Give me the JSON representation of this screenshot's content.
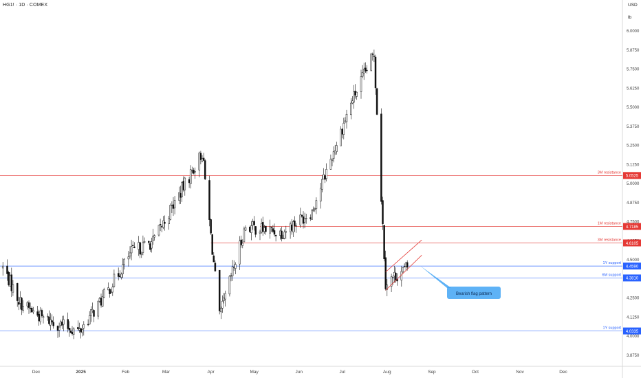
{
  "header": {
    "symbol_line": "HG1! · 1D · COMEX",
    "currency": "USD",
    "unit": "lb"
  },
  "colors": {
    "up_candle": "#111111",
    "down_candle": "#111111",
    "resistance": "#e53935",
    "support": "#2962ff",
    "callout": "#42a5f5",
    "axis_text": "#444444"
  },
  "chart_data": {
    "type": "candlestick",
    "title": "HG1! · 1D · COMEX",
    "currency": "USD",
    "unit": "lb",
    "ylim": [
      3.8,
      6.1
    ],
    "y_ticks": [
      "6.0000",
      "5.8750",
      "5.7500",
      "5.6250",
      "5.5000",
      "5.3750",
      "5.2500",
      "5.1250",
      "5.0000",
      "4.8750",
      "4.7500",
      "4.6250",
      "4.5000",
      "4.3750",
      "4.2500",
      "4.1250",
      "4.0000",
      "3.8750"
    ],
    "x_ticks": [
      {
        "label": "Dec",
        "date": "2024-12-01"
      },
      {
        "label": "2025",
        "date": "2025-01-01"
      },
      {
        "label": "Feb",
        "date": "2025-02-01"
      },
      {
        "label": "Mar",
        "date": "2025-03-01"
      },
      {
        "label": "Apr",
        "date": "2025-04-01"
      },
      {
        "label": "May",
        "date": "2025-05-01"
      },
      {
        "label": "Jun",
        "date": "2025-06-01"
      },
      {
        "label": "Jul",
        "date": "2025-07-01"
      },
      {
        "label": "Aug",
        "date": "2025-08-01"
      },
      {
        "label": "Sep",
        "date": "2025-09-01"
      },
      {
        "label": "Oct",
        "date": "2025-10-01"
      },
      {
        "label": "Nov",
        "date": "2025-11-01"
      },
      {
        "label": "Dec",
        "date": "2025-12-01"
      }
    ],
    "key_close_anchors": [
      {
        "date": "2024-11-08",
        "close": 4.45
      },
      {
        "date": "2024-11-20",
        "close": 4.22
      },
      {
        "date": "2024-12-05",
        "close": 4.12
      },
      {
        "date": "2024-12-31",
        "close": 4.03
      },
      {
        "date": "2025-01-20",
        "close": 4.3
      },
      {
        "date": "2025-02-05",
        "close": 4.55
      },
      {
        "date": "2025-02-20",
        "close": 4.62
      },
      {
        "date": "2025-03-26",
        "close": 5.2
      },
      {
        "date": "2025-04-07",
        "close": 4.12
      },
      {
        "date": "2025-04-25",
        "close": 4.72
      },
      {
        "date": "2025-05-20",
        "close": 4.68
      },
      {
        "date": "2025-06-10",
        "close": 4.82
      },
      {
        "date": "2025-07-08",
        "close": 5.55
      },
      {
        "date": "2025-07-23",
        "close": 5.85
      },
      {
        "date": "2025-07-31",
        "close": 4.35
      },
      {
        "date": "2025-08-15",
        "close": 4.45
      }
    ],
    "levels": [
      {
        "label": "3M resistance",
        "value": 5.0525,
        "price_label": "5.0525",
        "kind": "resistance",
        "start": "2024-11-01"
      },
      {
        "label": "1M resistance",
        "value": 4.7185,
        "price_label": "4.7185",
        "kind": "resistance",
        "start": "2025-05-05"
      },
      {
        "label": "3M resistance",
        "value": 4.6105,
        "price_label": "4.6105",
        "kind": "resistance",
        "start": "2025-04-01"
      },
      {
        "label": "1Y support",
        "value": 4.459,
        "price_label": "4.4590",
        "kind": "support",
        "start": "2024-11-01"
      },
      {
        "label": "6M support",
        "value": 4.381,
        "price_label": "4.3810",
        "kind": "support",
        "start": "2024-11-01"
      },
      {
        "label": "1Y support",
        "value": 4.0335,
        "price_label": "4.0335",
        "kind": "support",
        "start": "2024-11-01"
      }
    ],
    "channel": {
      "upper": [
        {
          "date": "2025-07-31",
          "price": 4.42
        },
        {
          "date": "2025-08-25",
          "price": 4.63
        }
      ],
      "lower": [
        {
          "date": "2025-07-31",
          "price": 4.3
        },
        {
          "date": "2025-08-25",
          "price": 4.53
        }
      ]
    },
    "annotation": {
      "text": "Bearish flag pattern",
      "point_date": "2025-08-24",
      "point_price": 4.46
    }
  }
}
